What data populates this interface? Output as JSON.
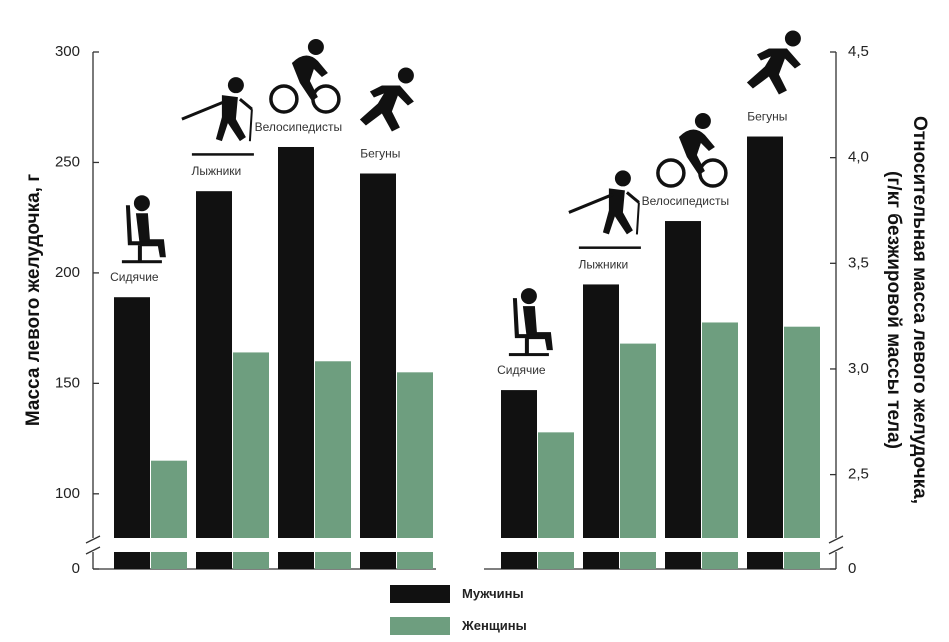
{
  "chart_data": [
    {
      "type": "bar",
      "categories": [
        "Сидячие",
        "Лыжники",
        "Велосипедисты",
        "Бегуны"
      ],
      "category_icons": [
        "sitting-person-icon",
        "skier-icon",
        "cyclist-icon",
        "runner-icon"
      ],
      "series": [
        {
          "name": "Мужчины",
          "color": "#111111",
          "values": [
            189,
            237,
            257,
            245
          ]
        },
        {
          "name": "Женщины",
          "color": "#6e9e7f",
          "values": [
            115,
            164,
            160,
            155
          ]
        }
      ],
      "ylabel": "Масса левого желудочка, г",
      "ylim": [
        80,
        300
      ],
      "yticks": [
        100,
        150,
        200,
        250,
        300
      ],
      "axis_break": true,
      "axis_zero_label": "0"
    },
    {
      "type": "bar",
      "categories": [
        "Сидячие",
        "Лыжники",
        "Велосипедисты",
        "Бегуны"
      ],
      "category_icons": [
        "sitting-person-icon",
        "skier-icon",
        "cyclist-icon",
        "runner-icon"
      ],
      "series": [
        {
          "name": "Мужчины",
          "color": "#111111",
          "values": [
            2.9,
            3.4,
            3.7,
            4.1
          ]
        },
        {
          "name": "Женщины",
          "color": "#6e9e7f",
          "values": [
            2.7,
            3.12,
            3.22,
            3.2
          ]
        }
      ],
      "ylabel_lines": [
        "Относительная масса левого желудочка,",
        "(г/кг безжировой массы тела)"
      ],
      "ylim": [
        2.2,
        4.5
      ],
      "yticks": [
        "2,5",
        "3,0",
        "3,5",
        "4,0",
        "4,5"
      ],
      "ytick_values": [
        2.5,
        3.0,
        3.5,
        4.0,
        4.5
      ],
      "axis_break": true,
      "axis_zero_label": "0"
    }
  ],
  "legend": [
    {
      "label": "Мужчины",
      "color": "#111111"
    },
    {
      "label": "Женщины",
      "color": "#6e9e7f"
    }
  ]
}
